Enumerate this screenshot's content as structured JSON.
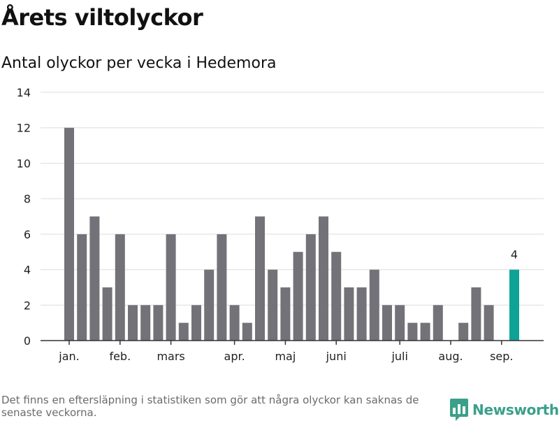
{
  "title": "Årets viltolyckor",
  "subtitle": "Antal olyckor per vecka i Hedemora",
  "footnote": "Det finns en eftersläpning i statistiken som gör att några olyckor kan saknas de senaste veckorna.",
  "brand": {
    "name": "Newsworthy",
    "icon": "bar-chart-bubble-icon",
    "color": "#3aa08a"
  },
  "colors": {
    "bar": "#737278",
    "highlight": "#0fa396",
    "grid": "#dddddd",
    "axis": "#333333"
  },
  "chart_data": {
    "type": "bar",
    "title": "Antal olyckor per vecka i Hedemora",
    "xlabel": "",
    "ylabel": "",
    "ylim": [
      0,
      14
    ],
    "yticks": [
      0,
      2,
      4,
      6,
      8,
      10,
      12,
      14
    ],
    "grid": true,
    "values": [
      12,
      6,
      7,
      3,
      6,
      2,
      2,
      2,
      6,
      1,
      2,
      4,
      6,
      2,
      1,
      7,
      4,
      3,
      5,
      6,
      7,
      5,
      3,
      3,
      4,
      2,
      2,
      1,
      1,
      2,
      0,
      1,
      3,
      2,
      0,
      4
    ],
    "month_labels": [
      {
        "label": "jan.",
        "at_bar": 0
      },
      {
        "label": "feb.",
        "at_bar": 4
      },
      {
        "label": "mars",
        "at_bar": 8
      },
      {
        "label": "apr.",
        "at_bar": 13
      },
      {
        "label": "maj",
        "at_bar": 17
      },
      {
        "label": "juni",
        "at_bar": 21
      },
      {
        "label": "juli",
        "at_bar": 26
      },
      {
        "label": "aug.",
        "at_bar": 30
      },
      {
        "label": "sep.",
        "at_bar": 34
      }
    ],
    "highlight_index": 35,
    "highlight_label": "4"
  }
}
